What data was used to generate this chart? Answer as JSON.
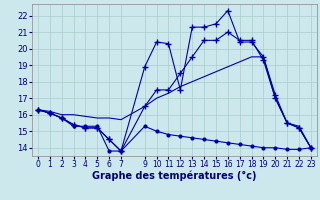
{
  "background_color": "#cce8ed",
  "grid_color": "#aacccc",
  "line_color": "#0000aa",
  "title": "Graphe des températures (°c)",
  "xlim": [
    -0.5,
    23.5
  ],
  "ylim": [
    13.5,
    22.7
  ],
  "yticks": [
    14,
    15,
    16,
    17,
    18,
    19,
    20,
    21,
    22
  ],
  "xticks": [
    0,
    1,
    2,
    3,
    4,
    5,
    6,
    7,
    9,
    10,
    11,
    12,
    13,
    14,
    15,
    16,
    17,
    18,
    19,
    20,
    21,
    22,
    23
  ],
  "series1_x": [
    0,
    1,
    2,
    3,
    4,
    5,
    6,
    7,
    9,
    10,
    11,
    12,
    13,
    14,
    15,
    16,
    17,
    18,
    19,
    20,
    21,
    22,
    23
  ],
  "series1_y": [
    16.3,
    16.1,
    15.8,
    15.3,
    15.3,
    15.3,
    13.8,
    13.8,
    15.3,
    15.0,
    14.8,
    14.7,
    14.6,
    14.5,
    14.4,
    14.3,
    14.2,
    14.1,
    14.0,
    14.0,
    13.9,
    13.9,
    14.0
  ],
  "series2_x": [
    0,
    1,
    2,
    3,
    4,
    5,
    6,
    7,
    9,
    10,
    11,
    12,
    13,
    14,
    15,
    16,
    17,
    18,
    19,
    20,
    21,
    22,
    23
  ],
  "series2_y": [
    16.3,
    16.1,
    15.8,
    15.4,
    15.2,
    15.2,
    14.5,
    13.8,
    18.9,
    20.4,
    20.3,
    17.5,
    21.3,
    21.3,
    21.5,
    22.3,
    20.4,
    20.4,
    19.5,
    17.2,
    15.5,
    15.2,
    14.0
  ],
  "series3_x": [
    0,
    1,
    2,
    3,
    4,
    5,
    6,
    7,
    9,
    10,
    11,
    12,
    13,
    14,
    15,
    16,
    17,
    18,
    19,
    20,
    21,
    22,
    23
  ],
  "series3_y": [
    16.3,
    16.1,
    15.8,
    15.4,
    15.2,
    15.2,
    14.5,
    13.8,
    16.5,
    17.5,
    17.5,
    18.5,
    19.5,
    20.5,
    20.5,
    21.0,
    20.5,
    20.5,
    19.3,
    17.0,
    15.5,
    15.2,
    14.0
  ],
  "series4_x": [
    0,
    1,
    2,
    3,
    4,
    5,
    6,
    7,
    9,
    10,
    11,
    12,
    13,
    14,
    15,
    16,
    17,
    18,
    19,
    20,
    21,
    22,
    23
  ],
  "series4_y": [
    16.3,
    16.2,
    16.0,
    16.0,
    15.9,
    15.8,
    15.8,
    15.7,
    16.5,
    17.0,
    17.3,
    17.7,
    18.0,
    18.3,
    18.6,
    18.9,
    19.2,
    19.5,
    19.5,
    17.0,
    15.5,
    15.3,
    14.0
  ]
}
